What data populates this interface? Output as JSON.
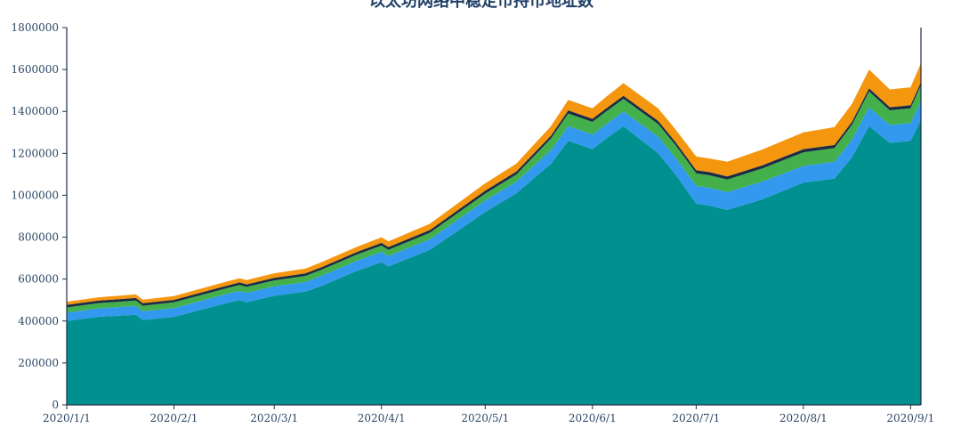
{
  "chart_data": {
    "type": "area",
    "stacked": true,
    "title": "以太坊网络中稳定币持币地址数",
    "xlabel": "",
    "ylabel": "",
    "ylim": [
      0,
      1800000
    ],
    "yticks": [
      0,
      200000,
      400000,
      600000,
      800000,
      1000000,
      1200000,
      1400000,
      1600000,
      1800000
    ],
    "xticks": [
      "2020/1/1",
      "2020/2/1",
      "2020/3/1",
      "2020/4/1",
      "2020/5/1",
      "2020/6/1",
      "2020/7/1",
      "2020/8/1",
      "2020/9/1"
    ],
    "x": [
      "2020/1/1",
      "2020/1/10",
      "2020/1/21",
      "2020/1/23",
      "2020/2/1",
      "2020/2/15",
      "2020/2/20",
      "2020/2/22",
      "2020/3/1",
      "2020/3/10",
      "2020/3/15",
      "2020/3/25",
      "2020/4/1",
      "2020/4/3",
      "2020/4/15",
      "2020/5/1",
      "2020/5/10",
      "2020/5/20",
      "2020/5/25",
      "2020/6/1",
      "2020/6/5",
      "2020/6/10",
      "2020/6/20",
      "2020/6/25",
      "2020/7/1",
      "2020/7/5",
      "2020/7/10",
      "2020/7/20",
      "2020/8/1",
      "2020/8/10",
      "2020/8/15",
      "2020/8/20",
      "2020/8/26",
      "2020/9/1",
      "2020/9/4"
    ],
    "series": [
      {
        "values": [
          400000,
          420000,
          430000,
          405000,
          420000,
          480000,
          500000,
          490000,
          520000,
          540000,
          570000,
          640000,
          680000,
          660000,
          740000,
          920000,
          1010000,
          1150000,
          1260000,
          1220000,
          1270000,
          1330000,
          1200000,
          1100000,
          960000,
          950000,
          930000,
          980000,
          1060000,
          1080000,
          1180000,
          1330000,
          1250000,
          1260000,
          1360000
        ],
        "color": "#009090"
      },
      {
        "values": [
          40000,
          40000,
          42000,
          42000,
          42000,
          44000,
          44000,
          45000,
          46000,
          46000,
          48000,
          48000,
          50000,
          50000,
          50000,
          55000,
          55000,
          65000,
          70000,
          70000,
          70000,
          70000,
          80000,
          80000,
          85000,
          85000,
          85000,
          85000,
          80000,
          80000,
          85000,
          90000,
          85000,
          85000,
          90000
        ],
        "color": "#3399ee"
      },
      {
        "values": [
          25000,
          25000,
          26000,
          26000,
          27000,
          27000,
          28000,
          28000,
          28000,
          29000,
          29000,
          30000,
          30000,
          30000,
          31000,
          33000,
          34000,
          55000,
          60000,
          60000,
          60000,
          60000,
          60000,
          60000,
          60000,
          60000,
          60000,
          62000,
          65000,
          65000,
          70000,
          75000,
          70000,
          70000,
          75000
        ],
        "color": "#44b04c"
      },
      {
        "values": [
          12000,
          12000,
          12000,
          12000,
          12000,
          12000,
          12000,
          12000,
          12000,
          12000,
          12000,
          12000,
          13000,
          13000,
          13000,
          14000,
          14000,
          14000,
          15000,
          15000,
          15000,
          15000,
          15000,
          15000,
          15000,
          15000,
          15000,
          15000,
          15000,
          15000,
          15000,
          15000,
          15000,
          15000,
          15000
        ],
        "color": "#1c2c44"
      },
      {
        "values": [
          15000,
          16000,
          17000,
          17000,
          18000,
          20000,
          20000,
          20000,
          22000,
          23000,
          24000,
          25000,
          27000,
          27000,
          30000,
          35000,
          38000,
          45000,
          50000,
          50000,
          55000,
          60000,
          60000,
          60000,
          65000,
          65000,
          70000,
          75000,
          80000,
          85000,
          85000,
          90000,
          85000,
          85000,
          90000
        ],
        "color": "#f5960f"
      }
    ]
  }
}
